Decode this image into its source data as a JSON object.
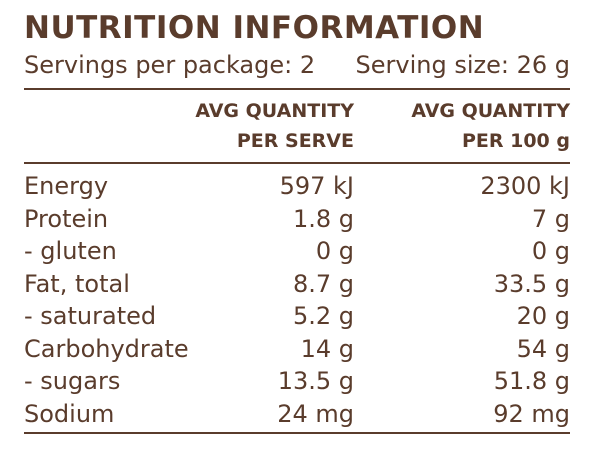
{
  "header": {
    "title": "NUTRITION INFORMATION",
    "servings_per_package": "Servings per package: 2",
    "serving_size": "Serving size: 26 g"
  },
  "columns": {
    "per_serve_line1": "AVG QUANTITY",
    "per_serve_line2": "PER SERVE",
    "per_100g_line1": "AVG QUANTITY",
    "per_100g_line2": "PER 100 g"
  },
  "rows": [
    {
      "name": "Energy",
      "per_serve": "597 kJ",
      "per_100g": "2300 kJ"
    },
    {
      "name": "Protein",
      "per_serve": "1.8 g",
      "per_100g": "7 g"
    },
    {
      "name": "- gluten",
      "per_serve": "0 g",
      "per_100g": "0 g"
    },
    {
      "name": "Fat, total",
      "per_serve": "8.7 g",
      "per_100g": "33.5 g"
    },
    {
      "name": "- saturated",
      "per_serve": "5.2 g",
      "per_100g": "20 g"
    },
    {
      "name": "Carbohydrate",
      "per_serve": "14 g",
      "per_100g": "54 g"
    },
    {
      "name": "- sugars",
      "per_serve": "13.5 g",
      "per_100g": "51.8 g"
    },
    {
      "name": "Sodium",
      "per_serve": "24 mg",
      "per_100g": "92 mg"
    }
  ]
}
